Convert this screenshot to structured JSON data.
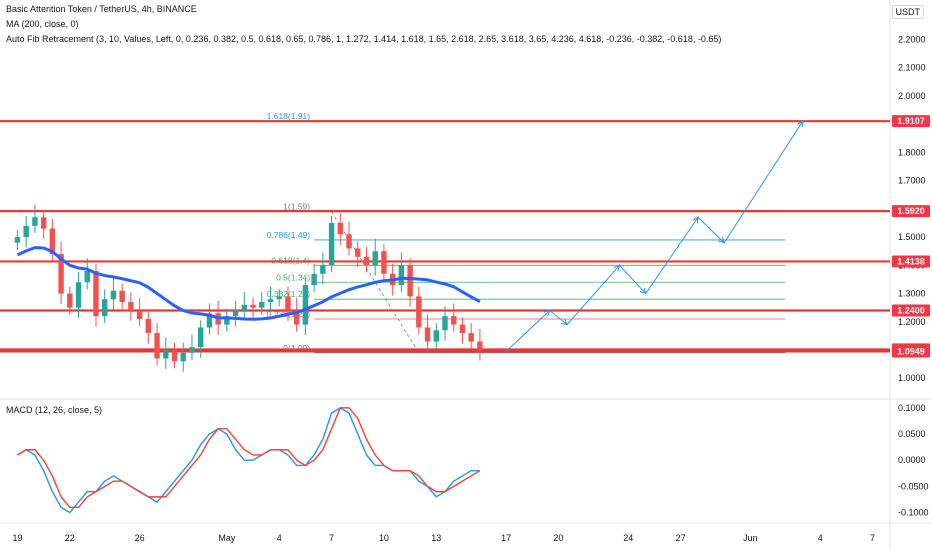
{
  "header": {
    "symbol_line": "Basic Attention Token / TetherUS, 4h, BINANCE",
    "ma_line": "MA (200, close, 0)",
    "fib_line": "Auto Fib Retracement (3, 10, Values, Left, 0, 0.236, 0.382, 0.5, 0.618, 0.65, 0.786, 1, 1.272, 1.414, 1.618, 1.65, 2.618, 2.65, 3.618, 3.65, 4.236, 4.618, -0.236, -0.382, -0.618, -0.65)",
    "currency": "USDT"
  },
  "macd_label": "MACD (12, 26, close, 5)",
  "colors": {
    "up": "#26a69a",
    "down": "#ef5350",
    "ma": "#2962ff",
    "macd_line": "#2196f3",
    "signal_line": "#f44336",
    "level_line": "#e53935",
    "level_label_bg": "#f23645",
    "path_line": "#2196f3",
    "fib_green": "#4caf50",
    "fib_blue": "#2196f3",
    "fib_gray": "#787b86"
  },
  "chart_data": [
    {
      "type": "candlestick",
      "title": "Basic Attention Token / TetherUS, 4h, BINANCE",
      "y_axis_ticks": [
        "2.2000",
        "2.1000",
        "2.0000",
        "1.9000",
        "1.8000",
        "1.7000",
        "1.6000",
        "1.5000",
        "1.4000",
        "1.3000",
        "1.2000",
        "1.1000",
        "1.0000"
      ],
      "y_axis_tick_values": [
        2.2,
        2.1,
        2.0,
        1.9,
        1.8,
        1.7,
        1.6,
        1.5,
        1.4,
        1.3,
        1.2,
        1.1,
        1.0
      ],
      "ylim": [
        0.93,
        2.34
      ],
      "x_axis_ticks": [
        "19",
        "22",
        "26",
        "May",
        "4",
        "7",
        "10",
        "13",
        "17",
        "20",
        "24",
        "27",
        "Jun",
        "4",
        "7"
      ],
      "x_axis_tick_index": [
        0,
        6,
        14,
        24,
        30,
        36,
        42,
        48,
        56,
        62,
        70,
        76,
        84,
        92,
        98
      ],
      "xlim": [
        -2,
        100
      ],
      "closes": [
        1.5,
        1.54,
        1.57,
        1.53,
        1.44,
        1.3,
        1.25,
        1.34,
        1.38,
        1.22,
        1.28,
        1.31,
        1.27,
        1.24,
        1.21,
        1.16,
        1.07,
        1.1,
        1.06,
        1.09,
        1.11,
        1.18,
        1.23,
        1.19,
        1.22,
        1.24,
        1.26,
        1.25,
        1.27,
        1.28,
        1.29,
        1.24,
        1.19,
        1.33,
        1.37,
        1.4,
        1.55,
        1.51,
        1.46,
        1.43,
        1.4,
        1.45,
        1.37,
        1.33,
        1.4,
        1.29,
        1.18,
        1.13,
        1.17,
        1.22,
        1.19,
        1.16,
        1.13,
        1.1
      ],
      "levels": [
        {
          "label": "1.9107",
          "value": 1.9107
        },
        {
          "label": "1.5920",
          "value": 1.592
        },
        {
          "label": "1.4138",
          "value": 1.4138
        },
        {
          "label": "1.2400",
          "value": 1.24
        },
        {
          "label": "1.1021",
          "value": 1.1021
        },
        {
          "label": "1.0949",
          "value": 1.0949
        }
      ],
      "fib_labels": [
        {
          "text": "1.618(1.91)",
          "value": 1.9107
        },
        {
          "text": "1(1.59)",
          "value": 1.59
        },
        {
          "text": "0.786(1.49)",
          "value": 1.49
        },
        {
          "text": "0.618(1.4)",
          "value": 1.4
        },
        {
          "text": "0.5(1.34)",
          "value": 1.34
        },
        {
          "text": "0.382(1.28)",
          "value": 1.28
        },
        {
          "text": "0.236(1.21)",
          "value": 1.21
        },
        {
          "text": "0(1.09)",
          "value": 1.09
        }
      ],
      "projection_path": [
        {
          "i": 56,
          "v": 1.0949
        },
        {
          "i": 61,
          "v": 1.24
        },
        {
          "i": 63,
          "v": 1.19
        },
        {
          "i": 69,
          "v": 1.4
        },
        {
          "i": 72,
          "v": 1.3
        },
        {
          "i": 78,
          "v": 1.57
        },
        {
          "i": 81,
          "v": 1.48
        },
        {
          "i": 90,
          "v": 1.9107
        }
      ]
    },
    {
      "type": "line",
      "title": "MACD (12, 26, close, 5)",
      "y_axis_ticks": [
        "0.1000",
        "0.0500",
        "0.0000",
        "-0.0500",
        "-0.1000"
      ],
      "y_axis_tick_values": [
        0.1,
        0.05,
        0.0,
        -0.05,
        -0.1
      ],
      "ylim": [
        -0.118,
        0.115
      ],
      "series": [
        {
          "values": [
            0.01,
            0.02,
            0.01,
            -0.02,
            -0.06,
            -0.09,
            -0.1,
            -0.08,
            -0.06,
            -0.06,
            -0.04,
            -0.03,
            -0.04,
            -0.05,
            -0.06,
            -0.07,
            -0.08,
            -0.06,
            -0.04,
            -0.02,
            0.0,
            0.03,
            0.05,
            0.06,
            0.05,
            0.02,
            0.0,
            0.0,
            0.01,
            0.02,
            0.02,
            0.01,
            -0.01,
            -0.01,
            0.01,
            0.04,
            0.09,
            0.1,
            0.09,
            0.05,
            0.01,
            -0.01,
            -0.01,
            -0.02,
            -0.02,
            -0.02,
            -0.04,
            -0.05,
            -0.07,
            -0.06,
            -0.04,
            -0.03,
            -0.02,
            -0.02
          ]
        },
        {
          "values": [
            0.01,
            0.02,
            0.02,
            0.0,
            -0.03,
            -0.07,
            -0.09,
            -0.09,
            -0.07,
            -0.06,
            -0.05,
            -0.04,
            -0.04,
            -0.05,
            -0.06,
            -0.07,
            -0.07,
            -0.07,
            -0.05,
            -0.03,
            -0.01,
            0.01,
            0.04,
            0.06,
            0.06,
            0.04,
            0.02,
            0.01,
            0.01,
            0.02,
            0.02,
            0.02,
            0.0,
            -0.01,
            0.0,
            0.02,
            0.06,
            0.1,
            0.1,
            0.08,
            0.04,
            0.01,
            -0.01,
            -0.02,
            -0.02,
            -0.02,
            -0.03,
            -0.05,
            -0.06,
            -0.06,
            -0.05,
            -0.04,
            -0.03,
            -0.02
          ]
        }
      ]
    }
  ]
}
